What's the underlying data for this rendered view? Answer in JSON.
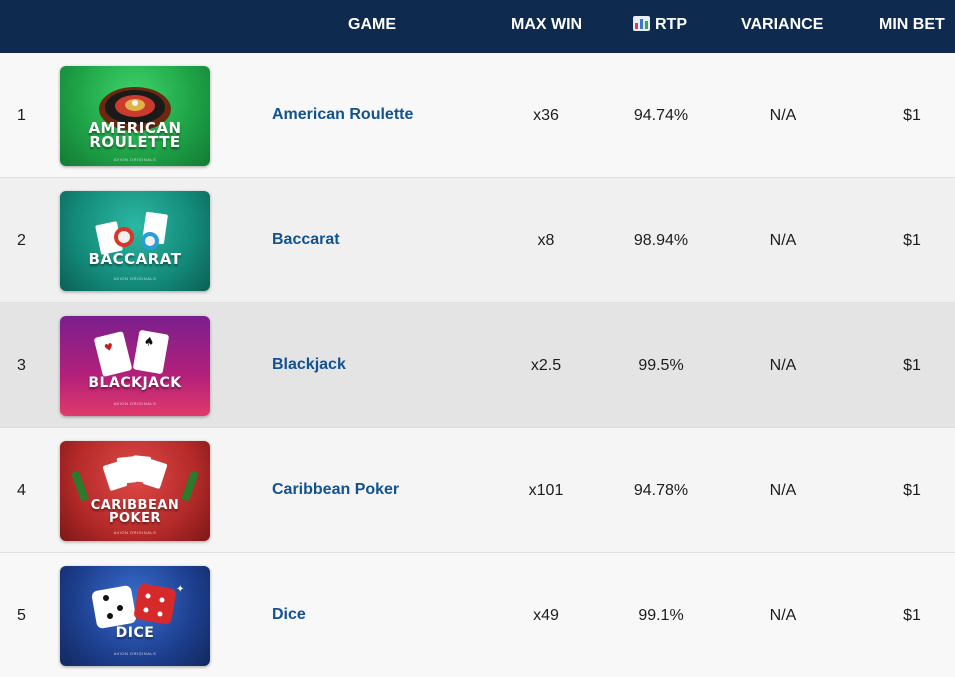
{
  "header": {
    "game": "GAME",
    "max_win": "MAX WIN",
    "rtp": "RTP",
    "rtp_icon": "bar-chart-icon",
    "variance": "VARIANCE",
    "min_bet": "MIN BET"
  },
  "rows": [
    {
      "rank": "1",
      "name": "American Roulette",
      "thumb_title": [
        "AMERICAN",
        "ROULETTE"
      ],
      "thumb_brand": "AVION ORIGINALS",
      "max_win": "x36",
      "rtp": "94.74%",
      "variance": "N/A",
      "min_bet": "$1",
      "theme": "#1fa548"
    },
    {
      "rank": "2",
      "name": "Baccarat",
      "thumb_title": [
        "BACCARAT"
      ],
      "thumb_brand": "AVION ORIGINALS",
      "max_win": "x8",
      "rtp": "98.94%",
      "variance": "N/A",
      "min_bet": "$1",
      "theme": "#138a7a"
    },
    {
      "rank": "3",
      "name": "Blackjack",
      "thumb_title": [
        "BLACKJACK"
      ],
      "thumb_brand": "AVION ORIGINALS",
      "max_win": "x2.5",
      "rtp": "99.5%",
      "variance": "N/A",
      "min_bet": "$1",
      "theme": "#a0197a"
    },
    {
      "rank": "4",
      "name": "Caribbean Poker",
      "thumb_title": [
        "CARIBBEAN",
        "POKER"
      ],
      "thumb_brand": "AVION ORIGINALS",
      "max_win": "x101",
      "rtp": "94.78%",
      "variance": "N/A",
      "min_bet": "$1",
      "theme": "#b52a2a"
    },
    {
      "rank": "5",
      "name": "Dice",
      "thumb_title": [
        "DICE"
      ],
      "thumb_brand": "AVION ORIGINALS",
      "max_win": "x49",
      "rtp": "99.1%",
      "variance": "N/A",
      "min_bet": "$1",
      "theme": "#1d3f8f"
    }
  ]
}
